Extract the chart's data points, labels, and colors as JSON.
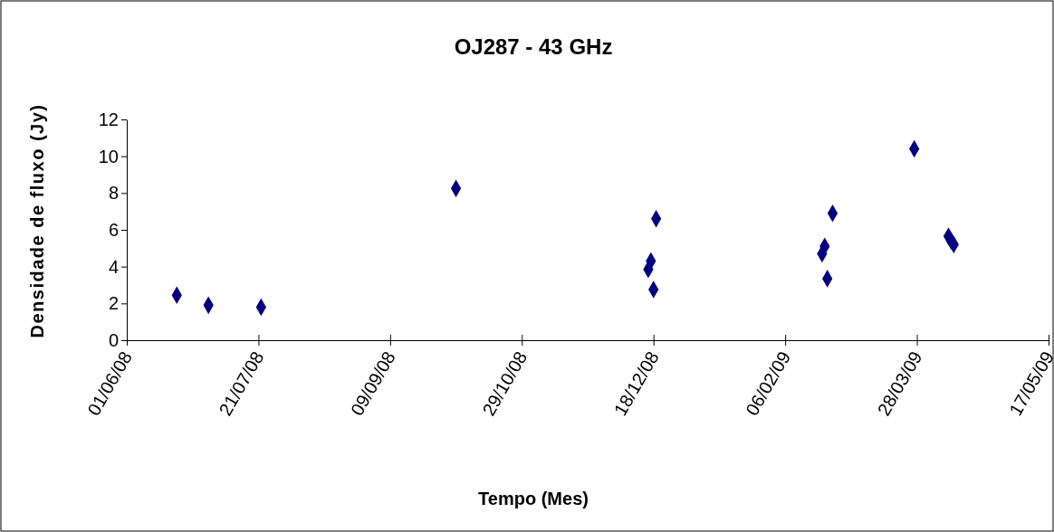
{
  "chart_data": {
    "type": "scatter",
    "title": "OJ287 - 43 GHz",
    "xlabel": "Tempo (Mes)",
    "ylabel": "Densidade de fluxo (Jy)",
    "x": [
      "2008-06-20",
      "2008-07-02",
      "2008-07-22",
      "2008-10-04",
      "2008-12-16",
      "2008-12-17",
      "2008-12-18",
      "2008-12-19",
      "2009-02-20",
      "2009-02-21",
      "2009-02-22",
      "2009-02-24",
      "2009-03-27",
      "2009-04-09",
      "2009-04-10",
      "2009-04-11"
    ],
    "series": [
      {
        "color": "#000080",
        "values": [
          2.45,
          1.9,
          1.8,
          8.25,
          3.85,
          4.3,
          2.75,
          6.6,
          4.7,
          5.1,
          3.35,
          6.9,
          10.4,
          5.65,
          5.4,
          5.2
        ]
      }
    ],
    "xlim": [
      "2008-06-01",
      "2009-05-17"
    ],
    "xticks": [
      {
        "value": "2008-06-01",
        "label": "01/06/08"
      },
      {
        "value": "2008-07-21",
        "label": "21/07/08"
      },
      {
        "value": "2008-09-09",
        "label": "09/09/08"
      },
      {
        "value": "2008-10-29",
        "label": "29/10/08"
      },
      {
        "value": "2008-12-18",
        "label": "18/12/08"
      },
      {
        "value": "2009-02-06",
        "label": "06/02/09"
      },
      {
        "value": "2009-03-28",
        "label": "28/03/09"
      },
      {
        "value": "2009-05-17",
        "label": "17/05/09"
      }
    ],
    "ylim": [
      0,
      12
    ],
    "yticks": [
      0,
      2,
      4,
      6,
      8,
      10,
      12
    ],
    "grid": false,
    "marker": "diamond"
  }
}
